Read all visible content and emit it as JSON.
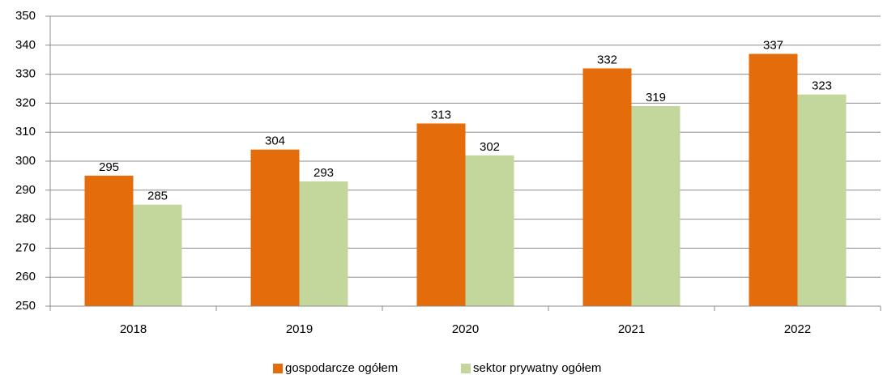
{
  "chart_data": {
    "type": "bar",
    "categories": [
      "2018",
      "2019",
      "2020",
      "2021",
      "2022"
    ],
    "series": [
      {
        "name": "gospodarcze ogółem",
        "color": "#e46c0a",
        "values": [
          295,
          304,
          313,
          332,
          337
        ]
      },
      {
        "name": "sektor prywatny ogółem",
        "color": "#c3d69b",
        "values": [
          285,
          293,
          302,
          319,
          323
        ]
      }
    ],
    "ylim": [
      250,
      350
    ],
    "yticks": [
      250,
      260,
      270,
      280,
      290,
      300,
      310,
      320,
      330,
      340,
      350
    ],
    "grid": true,
    "legend": "bottom"
  }
}
